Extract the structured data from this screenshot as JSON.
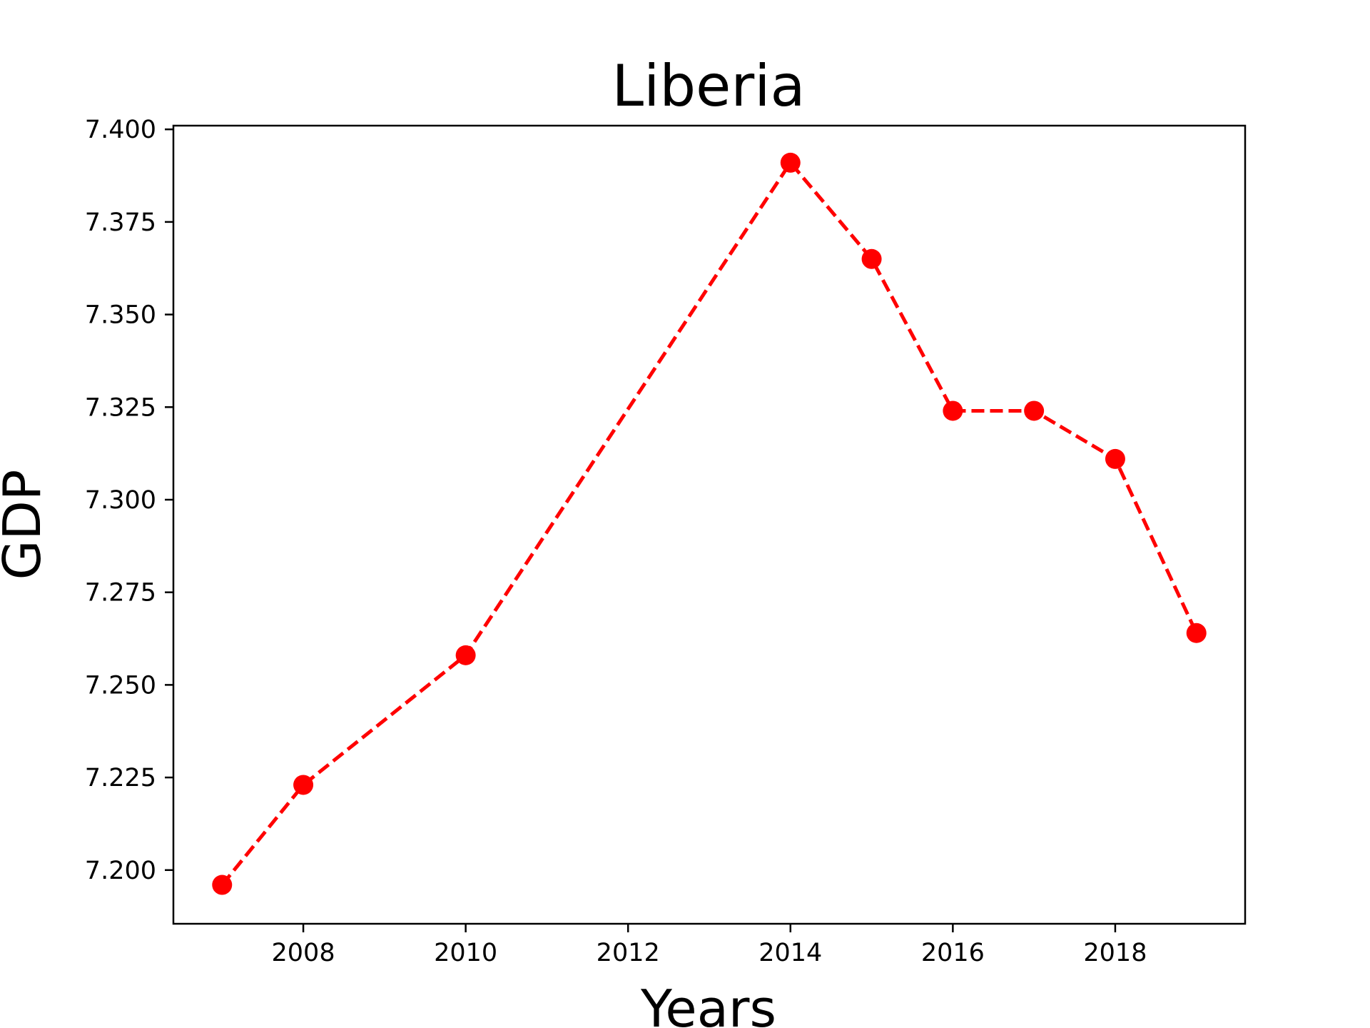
{
  "chart_data": {
    "type": "line",
    "title": "Liberia",
    "xlabel": "Years",
    "ylabel": "GDP",
    "x": [
      2007,
      2008,
      2010,
      2014,
      2015,
      2016,
      2017,
      2018,
      2019
    ],
    "series": [
      {
        "values": [
          7.196,
          7.223,
          7.258,
          7.391,
          7.365,
          7.324,
          7.324,
          7.311,
          7.264
        ],
        "color": "#ff0000",
        "line_style": "dashed",
        "marker": "circle"
      }
    ],
    "xlim": [
      2006.4,
      2019.6
    ],
    "ylim": [
      7.1855,
      7.401
    ],
    "x_ticks": [
      2008,
      2010,
      2012,
      2014,
      2016,
      2018
    ],
    "y_ticks": [
      7.2,
      7.225,
      7.25,
      7.275,
      7.3,
      7.325,
      7.35,
      7.375,
      7.4
    ],
    "x_tick_labels": [
      "2008",
      "2010",
      "2012",
      "2014",
      "2016",
      "2018"
    ],
    "y_tick_labels": [
      "7.200",
      "7.225",
      "7.250",
      "7.275",
      "7.300",
      "7.325",
      "7.350",
      "7.375",
      "7.400"
    ],
    "grid": false,
    "legend": false
  }
}
